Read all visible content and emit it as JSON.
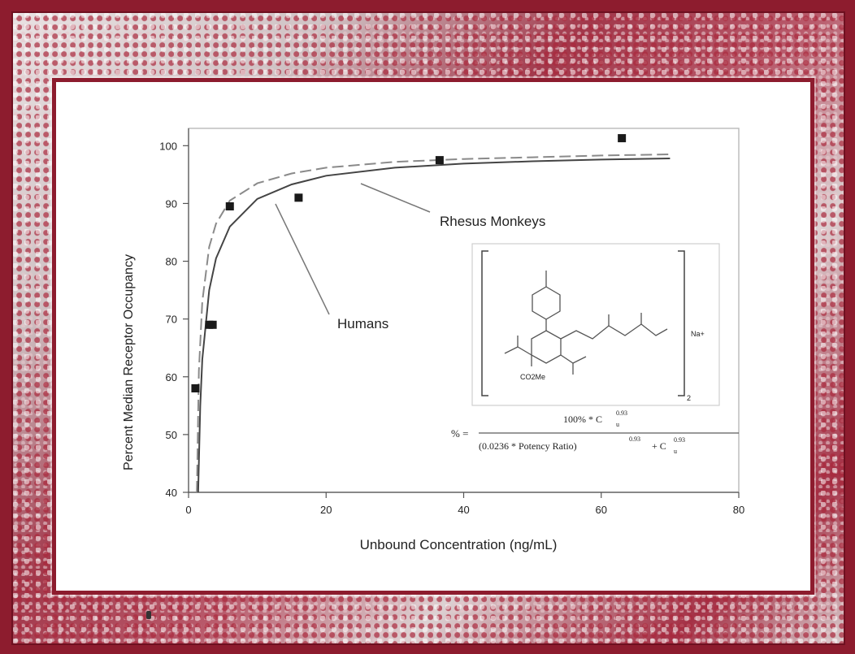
{
  "chart_data": {
    "type": "scatter",
    "xlabel": "Unbound Concentration (ng/mL)",
    "ylabel": "Percent Median Receptor Occupancy",
    "xlim": [
      0,
      80
    ],
    "ylim": [
      40,
      103
    ],
    "x_ticks": [
      "0",
      "20",
      "40",
      "60",
      "80"
    ],
    "y_ticks": [
      "40",
      "50",
      "60",
      "70",
      "80",
      "90",
      "100"
    ],
    "series": [
      {
        "marker": "square",
        "x": [
          1,
          3,
          3.5,
          6,
          16,
          36.5,
          63
        ],
        "y": [
          58,
          69,
          69,
          89.5,
          91,
          97.5,
          101.3
        ]
      },
      {
        "name": "Rhesus Monkeys",
        "line": "dashed",
        "x": [
          1.2,
          1.5,
          2,
          3,
          4,
          6,
          10,
          15,
          20,
          30,
          40,
          50,
          60,
          70
        ],
        "y": [
          40,
          61,
          73,
          82.5,
          86.5,
          90.5,
          93.5,
          95.2,
          96.2,
          97.2,
          97.7,
          98.0,
          98.3,
          98.5
        ]
      },
      {
        "name": "Humans",
        "line": "solid",
        "x": [
          1.4,
          1.7,
          2,
          3,
          4,
          6,
          10,
          15,
          20,
          30,
          40,
          50,
          60,
          70
        ],
        "y": [
          40,
          55,
          63,
          75,
          80.5,
          86,
          90.8,
          93.3,
          94.8,
          96.2,
          96.9,
          97.3,
          97.6,
          97.8
        ]
      }
    ],
    "annotations": [
      "Rhesus Monkeys",
      "Humans"
    ],
    "inset": {
      "description_labels": {
        "formula_suffix": "Na+",
        "subscript": "2",
        "ester": "CO2Me"
      },
      "equation": {
        "lhs": "% =",
        "numerator": "100% * C",
        "numerator_sub": "u",
        "numerator_exp": "0.93",
        "denominator": "(0.0236 * Potency Ratio)",
        "denominator_exp": "0.93",
        "denominator_plus": "+ C",
        "denominator_sub": "u",
        "denominator_exp2": "0.93"
      }
    }
  }
}
